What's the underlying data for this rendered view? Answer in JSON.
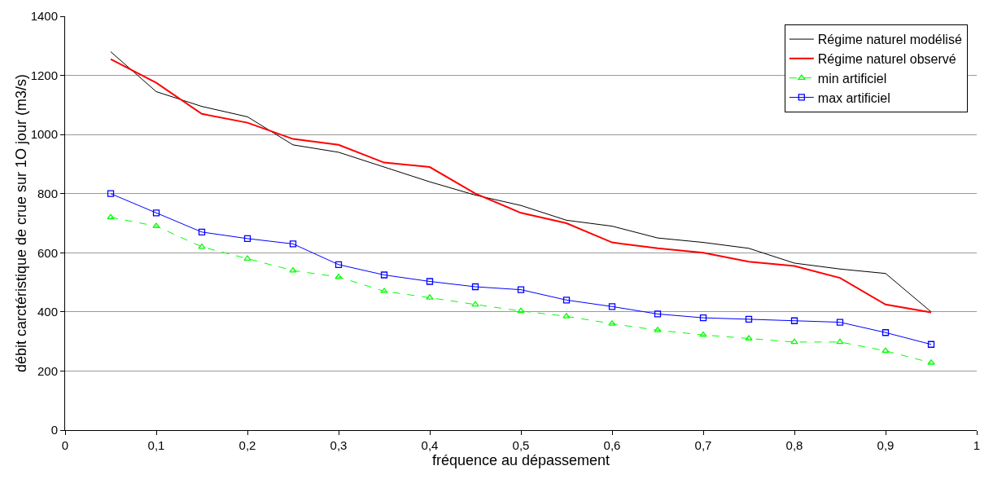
{
  "chart_data": {
    "type": "line",
    "xlabel": "fréquence au dépassement",
    "ylabel": "débit carctéristique de crue sur 1O jour (m3/s)",
    "x": [
      0.05,
      0.1,
      0.15,
      0.2,
      0.25,
      0.3,
      0.35,
      0.4,
      0.45,
      0.5,
      0.55,
      0.6,
      0.65,
      0.7,
      0.75,
      0.8,
      0.85,
      0.9,
      0.95
    ],
    "series": [
      {
        "name": "Régime naturel modélisé",
        "color": "#000000",
        "marker": "none",
        "line_style": "solid",
        "values": [
          1280,
          1145,
          1095,
          1060,
          965,
          940,
          890,
          840,
          795,
          760,
          710,
          690,
          650,
          635,
          615,
          565,
          545,
          530,
          400
        ]
      },
      {
        "name": "Régime naturel observé",
        "color": "#ff0000",
        "marker": "none",
        "line_style": "solid",
        "values": [
          1255,
          1175,
          1070,
          1040,
          985,
          965,
          905,
          890,
          800,
          735,
          700,
          635,
          615,
          600,
          570,
          555,
          515,
          425,
          398
        ]
      },
      {
        "name": "min artificiel",
        "color": "#00ff00",
        "marker": "triangle",
        "line_style": "dashed",
        "values": [
          720,
          690,
          620,
          580,
          540,
          518,
          470,
          448,
          425,
          403,
          385,
          360,
          338,
          322,
          310,
          298,
          298,
          268,
          228
        ]
      },
      {
        "name": "max artificiel",
        "color": "#0000ff",
        "marker": "square",
        "line_style": "solid",
        "values": [
          800,
          735,
          670,
          648,
          630,
          560,
          525,
          503,
          485,
          475,
          440,
          418,
          393,
          380,
          375,
          370,
          365,
          330,
          290
        ]
      }
    ],
    "xlim": [
      0,
      1
    ],
    "xticks": [
      0,
      {
        "value": 0.1,
        "label": "0,1"
      },
      {
        "value": 0.2,
        "label": "0,2"
      },
      {
        "value": 0.3,
        "label": "0,3"
      },
      {
        "value": 0.4,
        "label": "0,4"
      },
      {
        "value": 0.5,
        "label": "0,5"
      },
      {
        "value": 0.6,
        "label": "0,6"
      },
      {
        "value": 0.7,
        "label": "0,7"
      },
      {
        "value": 0.8,
        "label": "0,8"
      },
      {
        "value": 0.9,
        "label": "0,9"
      },
      1
    ],
    "ylim": [
      0,
      1400
    ],
    "yticks": [
      0,
      200,
      400,
      600,
      800,
      1000,
      1200,
      1400
    ],
    "grid": "y",
    "legend": "top right"
  }
}
